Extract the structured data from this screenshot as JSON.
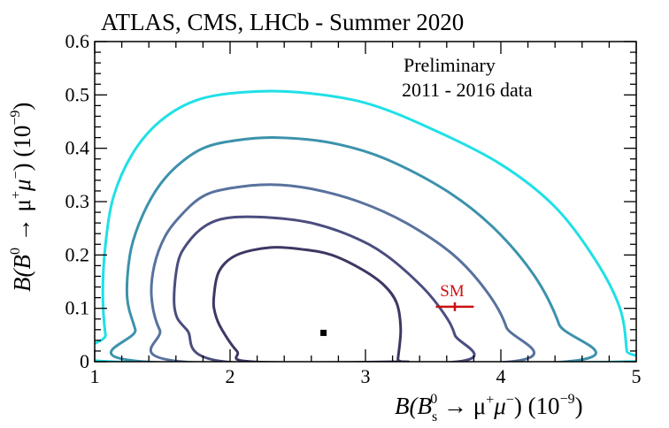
{
  "chart_data": {
    "type": "contour",
    "title": "ATLAS, CMS, LHCb - Summer 2020",
    "annotations": [
      "Preliminary",
      "2011 - 2016 data"
    ],
    "xlabel": {
      "prefix": "B(B",
      "sub": "s",
      "sup": "0",
      "mid": " → μ",
      "sup2": "+",
      "mid2": "μ",
      "sup3": "−",
      "mid3": ") (10",
      "sup4": "−9",
      "suffix": ")"
    },
    "ylabel": {
      "prefix": "B(B",
      "sup": "0",
      "mid": " → μ",
      "sup2": "+",
      "mid2": "μ",
      "sup3": "−",
      "mid3": ") (10",
      "sup4": "−9",
      "suffix": ")"
    },
    "xlim": [
      1,
      5
    ],
    "ylim": [
      0,
      0.6
    ],
    "xticks": [
      "1",
      "2",
      "3",
      "4",
      "5"
    ],
    "yticks": [
      "0",
      "0.1",
      "0.2",
      "0.3",
      "0.4",
      "0.5",
      "0.6"
    ],
    "best_fit": {
      "x": 2.69,
      "y": 0.054
    },
    "sm": {
      "label": "SM",
      "x": 3.66,
      "y": 0.103,
      "xerr": [
        3.52,
        3.8
      ]
    },
    "contours": [
      {
        "color": "#3d3863",
        "points": [
          [
            1.88,
            0.12
          ],
          [
            1.92,
            0.17
          ],
          [
            2.05,
            0.2
          ],
          [
            2.3,
            0.214
          ],
          [
            2.55,
            0.21
          ],
          [
            2.75,
            0.2
          ],
          [
            2.96,
            0.175
          ],
          [
            3.13,
            0.145
          ],
          [
            3.23,
            0.11
          ],
          [
            3.26,
            0.06
          ],
          [
            3.24,
            0.005
          ],
          [
            3.24,
            0.0
          ],
          [
            2.16,
            0.0
          ],
          [
            2.05,
            0.02
          ],
          [
            1.94,
            0.06
          ],
          [
            1.89,
            0.09
          ]
        ]
      },
      {
        "color": "#4b4d7e",
        "points": [
          [
            1.59,
            0.1
          ],
          [
            1.61,
            0.18
          ],
          [
            1.68,
            0.22
          ],
          [
            1.82,
            0.255
          ],
          [
            2.0,
            0.27
          ],
          [
            2.3,
            0.27
          ],
          [
            2.6,
            0.26
          ],
          [
            2.9,
            0.235
          ],
          [
            3.15,
            0.2
          ],
          [
            3.42,
            0.14
          ],
          [
            3.58,
            0.09
          ],
          [
            3.66,
            0.05
          ],
          [
            3.68,
            0.0
          ],
          [
            1.96,
            0.0
          ],
          [
            1.68,
            0.06
          ]
        ]
      },
      {
        "color": "#58729d",
        "points": [
          [
            1.42,
            0.12
          ],
          [
            1.44,
            0.18
          ],
          [
            1.52,
            0.235
          ],
          [
            1.64,
            0.275
          ],
          [
            1.8,
            0.31
          ],
          [
            2.0,
            0.325
          ],
          [
            2.3,
            0.332
          ],
          [
            2.6,
            0.324
          ],
          [
            2.95,
            0.3
          ],
          [
            3.3,
            0.26
          ],
          [
            3.65,
            0.2
          ],
          [
            3.9,
            0.13
          ],
          [
            4.04,
            0.065
          ],
          [
            4.07,
            0.0
          ],
          [
            1.65,
            0.0
          ],
          [
            1.48,
            0.06
          ]
        ]
      },
      {
        "color": "#3c92ac",
        "points": [
          [
            1.24,
            0.12
          ],
          [
            1.26,
            0.2
          ],
          [
            1.33,
            0.26
          ],
          [
            1.45,
            0.32
          ],
          [
            1.6,
            0.365
          ],
          [
            1.8,
            0.4
          ],
          [
            2.05,
            0.415
          ],
          [
            2.35,
            0.42
          ],
          [
            2.75,
            0.41
          ],
          [
            3.15,
            0.38
          ],
          [
            3.6,
            0.32
          ],
          [
            3.95,
            0.25
          ],
          [
            4.25,
            0.16
          ],
          [
            4.43,
            0.07
          ],
          [
            4.48,
            0.0
          ],
          [
            1.37,
            0.0
          ],
          [
            1.3,
            0.06
          ]
        ]
      },
      {
        "color": "#1fe0e6",
        "points": [
          [
            1.06,
            0.13
          ],
          [
            1.08,
            0.22
          ],
          [
            1.14,
            0.31
          ],
          [
            1.28,
            0.39
          ],
          [
            1.48,
            0.45
          ],
          [
            1.75,
            0.49
          ],
          [
            2.1,
            0.505
          ],
          [
            2.5,
            0.505
          ],
          [
            3.0,
            0.485
          ],
          [
            3.5,
            0.435
          ],
          [
            4.0,
            0.37
          ],
          [
            4.4,
            0.29
          ],
          [
            4.7,
            0.19
          ],
          [
            4.88,
            0.1
          ],
          [
            4.93,
            0.02
          ],
          [
            4.93,
            0.0
          ],
          [
            1.13,
            0.0
          ],
          [
            1.08,
            0.05
          ]
        ]
      }
    ],
    "grid": false
  }
}
